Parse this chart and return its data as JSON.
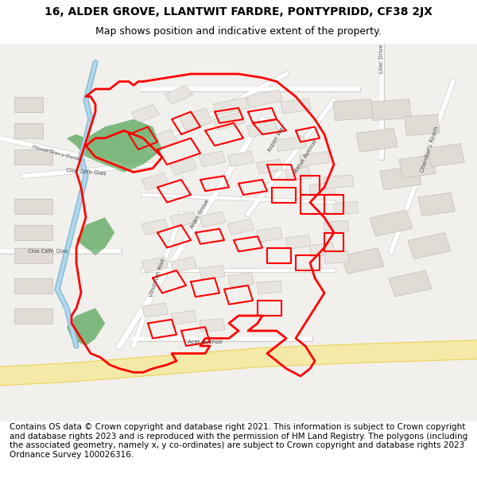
{
  "title_line1": "16, ALDER GROVE, LLANTWIT FARDRE, PONTYPRIDD, CF38 2JX",
  "title_line2": "Map shows position and indicative extent of the property.",
  "copyright_text": "Contains OS data © Crown copyright and database right 2021. This information is subject to Crown copyright and database rights 2023 and is reproduced with the permission of HM Land Registry. The polygons (including the associated geometry, namely x, y co-ordinates) are subject to Crown copyright and database rights 2023 Ordnance Survey 100026316.",
  "title_fontsize": 10,
  "subtitle_fontsize": 9,
  "copyright_fontsize": 7.5,
  "map_bg_color": "#f2f0ed",
  "green_area_color": "#7db87d",
  "blue_water_color": "#8fbcd4",
  "red_boundary_color": "#ff0000",
  "fig_width": 6.0,
  "fig_height": 6.25,
  "dpi": 100
}
